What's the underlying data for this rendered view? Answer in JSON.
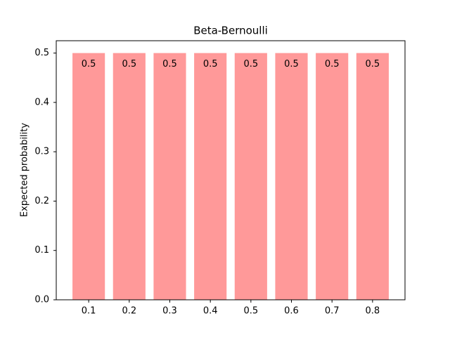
{
  "chart_data": {
    "type": "bar",
    "title": "Beta-Bernoulli",
    "ylabel": "Expected probability",
    "categories": [
      "0.1",
      "0.2",
      "0.3",
      "0.4",
      "0.5",
      "0.6",
      "0.7",
      "0.8"
    ],
    "values": [
      0.5,
      0.5,
      0.5,
      0.5,
      0.5,
      0.5,
      0.5,
      0.5
    ],
    "color": "#ff9999",
    "ylim": [
      0,
      0.525
    ],
    "yticks": [
      {
        "value": 0,
        "label": "0.0"
      },
      0.1,
      0.2,
      0.3,
      0.4,
      0.5
    ]
  }
}
